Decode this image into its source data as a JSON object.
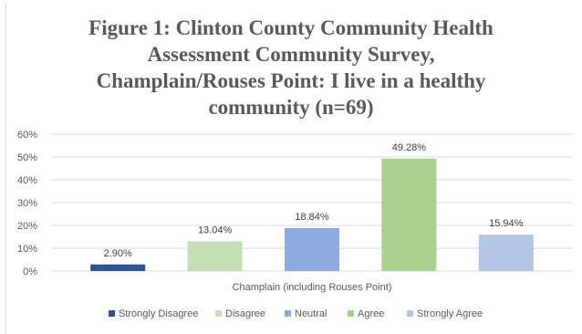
{
  "chart_data": {
    "type": "bar",
    "title_lines": [
      "Figure 1: Clinton County Community Health",
      "Assessment Community Survey,",
      "Champlain/Rouses Point: I live in a healthy",
      "community (n=69)"
    ],
    "categories": [
      "Champlain (including Rouses Point)"
    ],
    "series": [
      {
        "name": "Strongly Disagree",
        "values": [
          2.9
        ],
        "label": "2.90%",
        "color": "#2f5597"
      },
      {
        "name": "Disagree",
        "values": [
          13.04
        ],
        "label": "13.04%",
        "color": "#c5e0b4"
      },
      {
        "name": "Neutral",
        "values": [
          18.84
        ],
        "label": "18.84%",
        "color": "#8faadc"
      },
      {
        "name": "Agree",
        "values": [
          49.28
        ],
        "label": "49.28%",
        "color": "#a9d18e"
      },
      {
        "name": "Strongly Agree",
        "values": [
          15.94
        ],
        "label": "15.94%",
        "color": "#b4c7e7"
      }
    ],
    "y_ticks": [
      "0%",
      "10%",
      "20%",
      "30%",
      "40%",
      "50%",
      "60%"
    ],
    "ylim": [
      0,
      60
    ],
    "grid": true,
    "legend_position": "bottom"
  }
}
